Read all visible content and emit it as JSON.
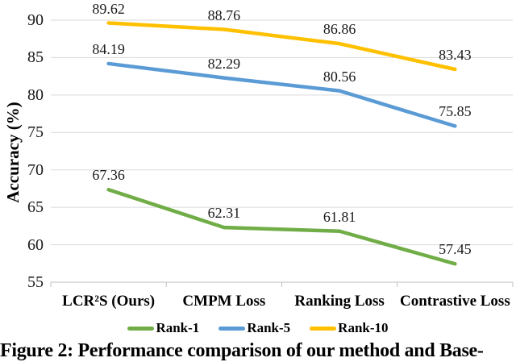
{
  "figure": {
    "caption": "Figure 2: Performance comparison of our method and Base-"
  },
  "chart_data": {
    "type": "line",
    "categories": [
      "LCR²S (Ours)",
      "CMPM Loss",
      "Ranking Loss",
      "Contrastive Loss"
    ],
    "series": [
      {
        "name": "Rank-1",
        "color": "#70AD47",
        "values": [
          67.36,
          62.31,
          61.81,
          57.45
        ]
      },
      {
        "name": "Rank-5",
        "color": "#5B9BD5",
        "values": [
          84.19,
          82.29,
          80.56,
          75.85
        ]
      },
      {
        "name": "Rank-10",
        "color": "#FFC000",
        "values": [
          89.62,
          88.76,
          86.86,
          83.43
        ]
      }
    ],
    "ylabel": "Accuracy (%)",
    "ylim": [
      55,
      90
    ],
    "yticks": [
      55,
      60,
      65,
      70,
      75,
      80,
      85,
      90
    ],
    "grid": true,
    "legend_position": "bottom",
    "data_labels": true
  },
  "colors": {
    "gridline": "#D9D9D9",
    "axis_line": "#BFBFBF",
    "text": "#000000"
  }
}
